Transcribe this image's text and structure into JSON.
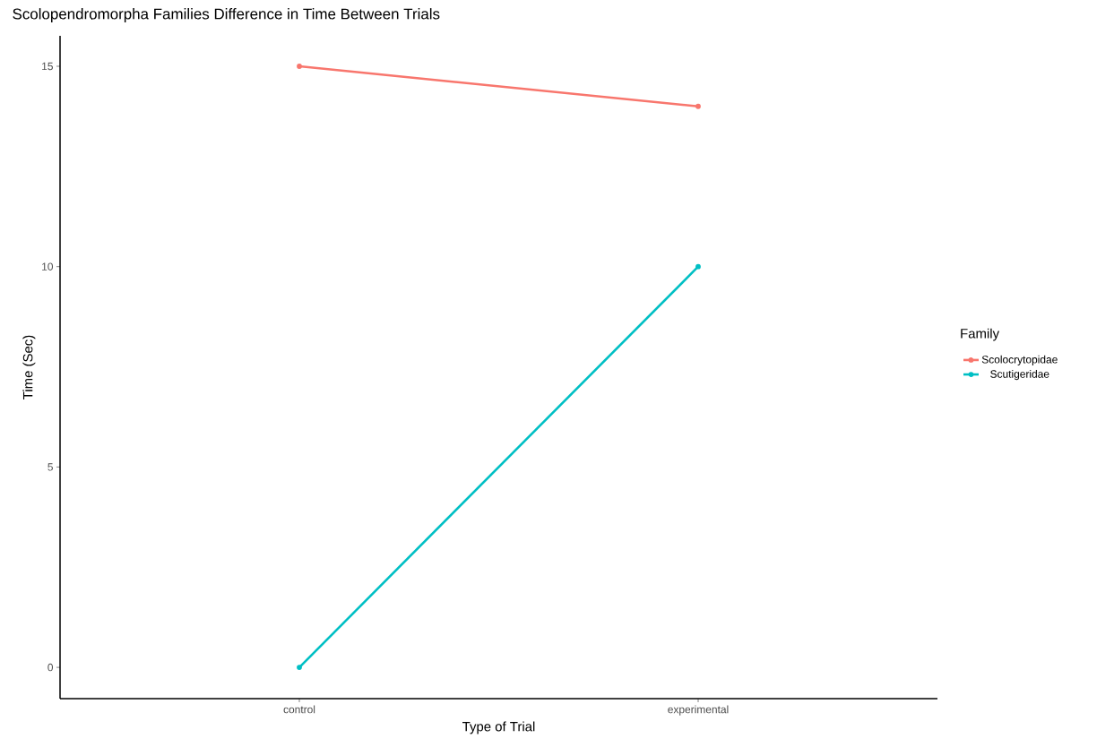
{
  "chart_data": {
    "type": "line",
    "title": "Scolopendromorpha Families Difference in Time Between Trials",
    "xlabel": "Type of Trial",
    "ylabel": "Time (Sec)",
    "legend_title": "Family",
    "categories": [
      "control",
      "experimental"
    ],
    "series": [
      {
        "name": "Scolocrytopidae",
        "color": "#f8766d",
        "values": [
          15,
          14
        ]
      },
      {
        "name": "Scutigeridae",
        "color": "#00bfc4",
        "values": [
          0,
          10
        ]
      }
    ],
    "ylim": [
      -0.78,
      15.76
    ],
    "yticks": [
      0,
      5,
      10,
      15
    ],
    "grid": false,
    "legend": "right",
    "marker": "circle",
    "line_style": "solid"
  }
}
